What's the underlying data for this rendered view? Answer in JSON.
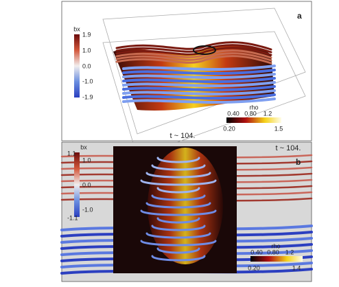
{
  "panels": [
    {
      "label": "a",
      "time": "t ~ 104.",
      "bx_colorbar": {
        "title": "bx",
        "ticks": [
          "1.9",
          "1.0",
          "0.0",
          "-1.0",
          "-1.9"
        ]
      },
      "rho_colorbar": {
        "title": "rho",
        "top_ticks": [
          "0.40",
          "0.80",
          "1.2"
        ],
        "bottom_ticks": [
          "0.20",
          "1.5"
        ]
      }
    },
    {
      "label": "b",
      "time": "t ~ 104.",
      "bx_colorbar": {
        "title": "bx",
        "ticks": [
          "1.1",
          "1.0",
          "0.0",
          "-1.0",
          "-1.1"
        ]
      },
      "rho_colorbar": {
        "title": "rho",
        "top_ticks": [
          "0.40",
          "0.80",
          "1.2"
        ],
        "bottom_ticks": [
          "0.20",
          "1.4"
        ]
      }
    }
  ]
}
